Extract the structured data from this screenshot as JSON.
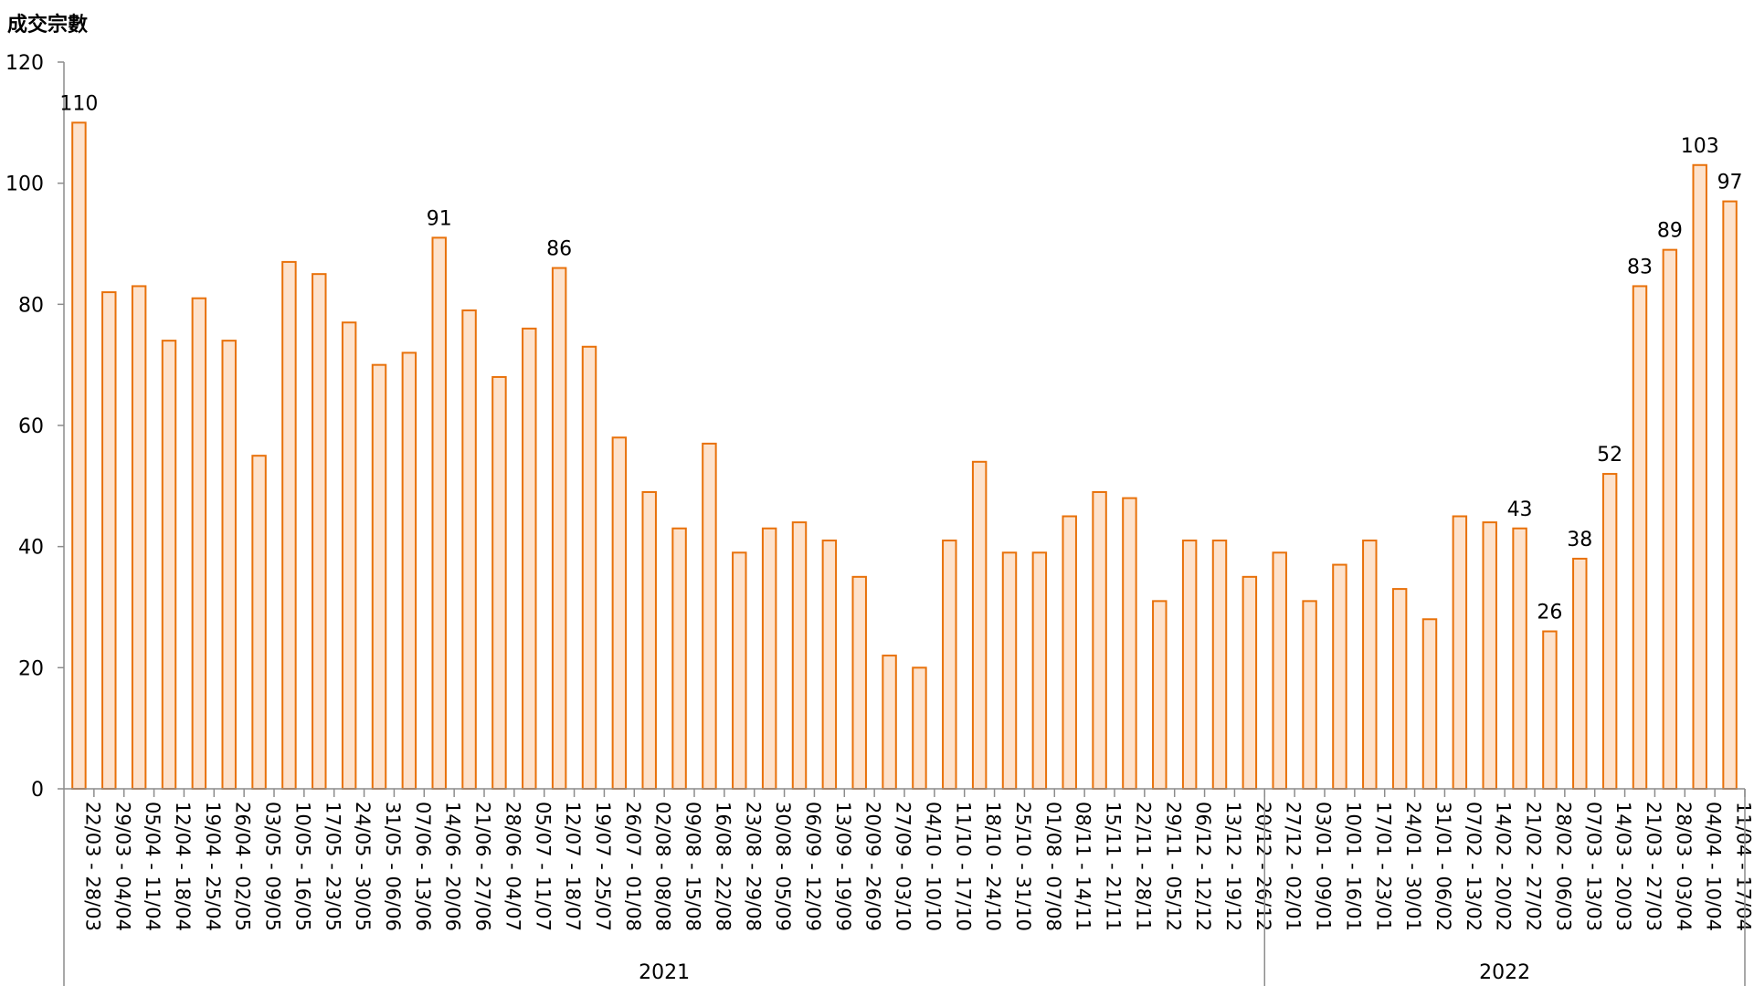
{
  "chart_data": {
    "type": "bar",
    "ylabel": "成交宗數",
    "ylim": [
      0,
      120
    ],
    "yticks": [
      0,
      20,
      40,
      60,
      80,
      100,
      120
    ],
    "grid": false,
    "bar_color": "#fde2cc",
    "bar_edge_color": "#e8710a",
    "axis_color": "#8c8c8c",
    "categories": [
      "22/03 - 28/03",
      "29/03 - 04/04",
      "05/04 - 11/04",
      "12/04 - 18/04",
      "19/04 - 25/04",
      "26/04 - 02/05",
      "03/05 - 09/05",
      "10/05 - 16/05",
      "17/05 - 23/05",
      "24/05 - 30/05",
      "31/05 - 06/06",
      "07/06 - 13/06",
      "14/06 - 20/06",
      "21/06 - 27/06",
      "28/06 - 04/07",
      "05/07 - 11/07",
      "12/07 - 18/07",
      "19/07 - 25/07",
      "26/07 - 01/08",
      "02/08 - 08/08",
      "09/08 - 15/08",
      "16/08 - 22/08",
      "23/08 - 29/08",
      "30/08 - 05/09",
      "06/09 - 12/09",
      "13/09 - 19/09",
      "20/09 - 26/09",
      "27/09 - 03/10",
      "04/10 - 10/10",
      "11/10 - 17/10",
      "18/10 - 24/10",
      "25/10 - 31/10",
      "01/08 - 07/08",
      "08/11 - 14/11",
      "15/11 - 21/11",
      "22/11 - 28/11",
      "29/11 - 05/12",
      "06/12 - 12/12",
      "13/12 - 19/12",
      "20/12 - 26/12",
      "27/12 - 02/01",
      "03/01 - 09/01",
      "10/01 - 16/01",
      "17/01 - 23/01",
      "24/01 - 30/01",
      "31/01 - 06/02",
      "07/02 - 13/02",
      "14/02 - 20/02",
      "21/02 - 27/02",
      "28/02 - 06/03",
      "07/03 - 13/03",
      "14/03 - 20/03",
      "21/03 - 27/03",
      "28/03 - 03/04",
      "04/04 - 10/04",
      "11/04 - 17/04"
    ],
    "values": [
      110,
      82,
      83,
      74,
      81,
      74,
      55,
      87,
      85,
      77,
      70,
      72,
      91,
      79,
      68,
      76,
      86,
      73,
      58,
      49,
      43,
      57,
      39,
      43,
      44,
      41,
      35,
      22,
      20,
      41,
      54,
      39,
      39,
      45,
      49,
      48,
      31,
      41,
      41,
      35,
      39,
      31,
      37,
      41,
      33,
      28,
      45,
      44,
      43,
      26,
      38,
      52,
      83,
      89,
      103,
      97
    ],
    "data_labels": [
      {
        "index": 0,
        "text": "110"
      },
      {
        "index": 12,
        "text": "91"
      },
      {
        "index": 16,
        "text": "86"
      },
      {
        "index": 48,
        "text": "43"
      },
      {
        "index": 49,
        "text": "26"
      },
      {
        "index": 50,
        "text": "38"
      },
      {
        "index": 51,
        "text": "52"
      },
      {
        "index": 52,
        "text": "83"
      },
      {
        "index": 53,
        "text": "89"
      },
      {
        "index": 54,
        "text": "103"
      },
      {
        "index": 55,
        "text": "97"
      }
    ],
    "year_groups": [
      {
        "label": "2021",
        "start": 0,
        "end": 39
      },
      {
        "label": "2022",
        "start": 40,
        "end": 55
      }
    ]
  }
}
